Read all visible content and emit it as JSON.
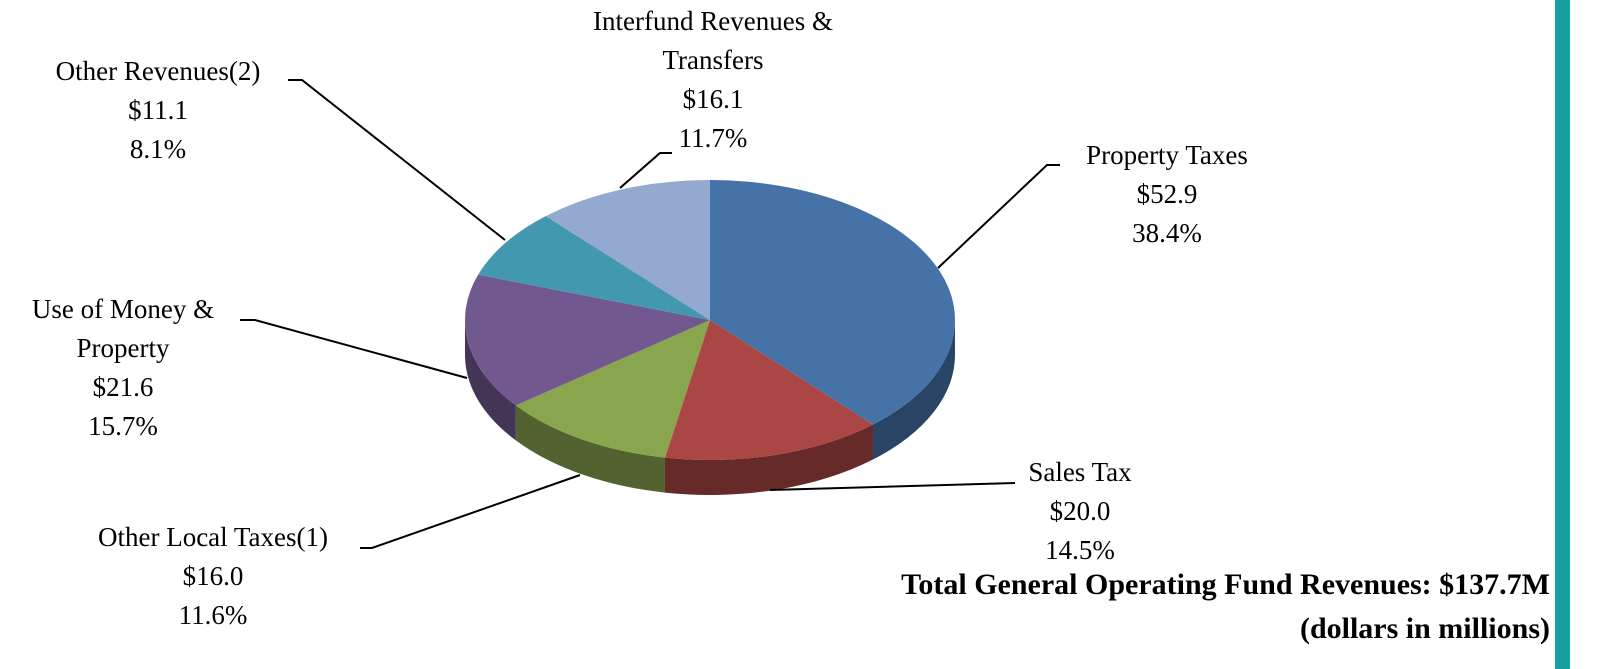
{
  "chart_data": {
    "type": "pie3d",
    "title": "Total General Operating Fund Revenues: $137.7M",
    "subtitle": "(dollars in millions)",
    "categories": [
      "Property Taxes",
      "Sales Tax",
      "Other Local Taxes(1)",
      "Use of Money & Property",
      "Other Revenues(2)",
      "Interfund Revenues & Transfers"
    ],
    "values": [
      52.9,
      20.0,
      16.0,
      21.6,
      11.1,
      16.1
    ],
    "value_labels": [
      "$52.9",
      "$20.0",
      "$16.0",
      "$21.6",
      "$11.1",
      "$16.1"
    ],
    "percent_labels": [
      "38.4%",
      "14.5%",
      "11.6%",
      "15.7%",
      "8.1%",
      "11.7%"
    ],
    "colors": [
      "#4572a7",
      "#aa4643",
      "#89a54e",
      "#71588f",
      "#4198af",
      "#93a9cf"
    ]
  }
}
